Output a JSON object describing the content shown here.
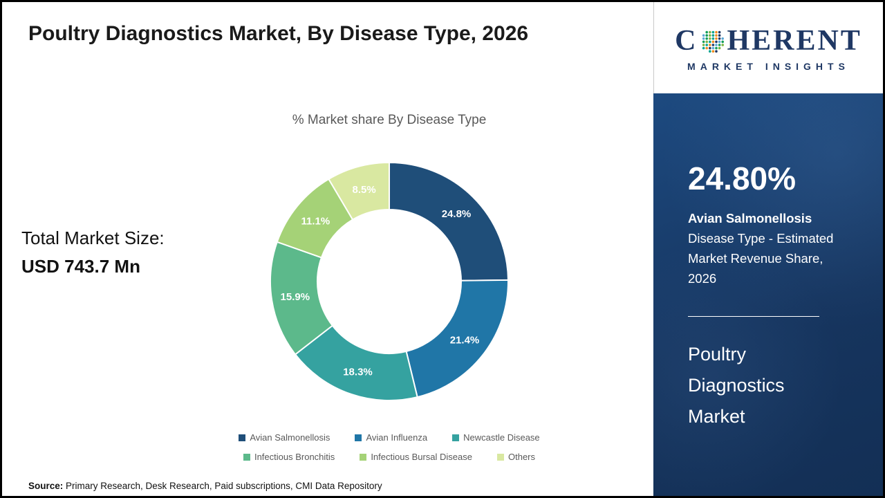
{
  "title": "Poultry Diagnostics Market, By Disease Type, 2026",
  "chart_subtitle": "% Market share By Disease Type",
  "total_market_size_label": "Total Market Size:",
  "total_market_size_value": "USD 743.7 Mn",
  "source_label": "Source:",
  "source_text": " Primary Research, Desk Research, Paid subscriptions, CMI Data Repository",
  "brand": {
    "name_prefix": "C",
    "name_suffix": "HERENT",
    "tagline": "MARKET INSIGHTS",
    "color": "#1f3864",
    "globe_dot_colors": [
      "#0f9d58",
      "#7cb342",
      "#00a390",
      "#f08c1e",
      "#1f3864",
      "#5aa7d4"
    ]
  },
  "side_panel": {
    "highlight_value": "24.80%",
    "highlight_bold": "Avian Salmonellosis",
    "highlight_text": "Disease Type - Estimated Market Revenue Share, 2026",
    "market_lines": [
      "Poultry",
      "Diagnostics",
      "Market"
    ],
    "background": "#17375e"
  },
  "chart_data": {
    "type": "pie",
    "donut": true,
    "title": "% Market share By Disease Type",
    "categories": [
      "Avian Salmonellosis",
      "Avian Influenza",
      "Newcastle Disease",
      "Infectious Bronchitis",
      "Infectious Bursal Disease",
      "Others"
    ],
    "values": [
      24.8,
      21.4,
      18.3,
      15.9,
      11.1,
      8.5
    ],
    "labels": [
      "24.8%",
      "21.4%",
      "18.3%",
      "15.9%",
      "11.1%",
      "8.5%"
    ],
    "colors": [
      "#1f4e79",
      "#2076a7",
      "#35a2a0",
      "#5cb98b",
      "#a5d277",
      "#d9e8a1"
    ],
    "start_angle_deg": 0,
    "direction": "clockwise",
    "legend_position": "bottom"
  }
}
